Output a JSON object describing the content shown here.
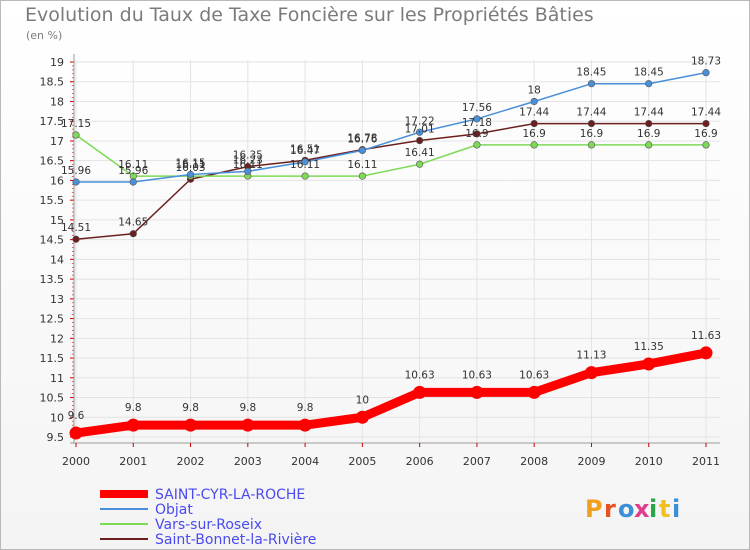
{
  "title": "Evolution du Taux de Taxe Foncière sur les Propriétés Bâties",
  "unit": "(en %)",
  "brand": "Proxiti",
  "chart_data": {
    "type": "line",
    "title": "Evolution du Taux de Taxe Foncière sur les Propriétés Bâties",
    "ylabel": "(en %)",
    "categories": [
      "2000",
      "2001",
      "2002",
      "2003",
      "2004",
      "2005",
      "2006",
      "2007",
      "2008",
      "2009",
      "2010",
      "2011"
    ],
    "ylim": [
      9.5,
      19
    ],
    "yticks": [
      "9.5",
      "10",
      "10.5",
      "11",
      "11.5",
      "12",
      "12.5",
      "13",
      "13.5",
      "14",
      "14.5",
      "15",
      "15.5",
      "16",
      "16.5",
      "17",
      "17.5",
      "18",
      "18.5",
      "19"
    ],
    "series": [
      {
        "name": "SAINT-CYR-LA-ROCHE",
        "color": "#ff0000",
        "values": [
          9.6,
          9.8,
          9.8,
          9.8,
          9.8,
          10,
          10.63,
          10.63,
          10.63,
          11.13,
          11.35,
          11.63
        ],
        "labels": [
          "9.6",
          "9.8",
          "9.8",
          "9.8",
          "9.8",
          "10",
          "10.63",
          "10.63",
          "10.63",
          "11.13",
          "11.35",
          "11.63"
        ]
      },
      {
        "name": "Objat",
        "color": "#4a90d9",
        "values": [
          15.96,
          15.96,
          16.15,
          16.23,
          16.47,
          16.76,
          17.22,
          17.56,
          18,
          18.45,
          18.45,
          18.73
        ],
        "labels": [
          "15.96",
          "15.96",
          "16.15",
          "16.23",
          "16.47",
          "16.76",
          "17.22",
          "17.56",
          "18",
          "18.45",
          "18.45",
          "18.73"
        ]
      },
      {
        "name": "Vars-sur-Roseix",
        "color": "#7ed957",
        "values": [
          17.15,
          16.11,
          16.11,
          16.11,
          16.11,
          16.11,
          16.41,
          16.9,
          16.9,
          16.9,
          16.9,
          16.9
        ],
        "labels": [
          "17.15",
          "16.11",
          "16.11",
          "16.11",
          "16.11",
          "16.11",
          "16.41",
          "16.9",
          "16.9",
          "16.9",
          "16.9",
          "16.9"
        ]
      },
      {
        "name": "Saint-Bonnet-la-Rivière",
        "color": "#6b1f1f",
        "values": [
          14.51,
          14.65,
          16.03,
          16.35,
          16.51,
          16.78,
          17.01,
          17.18,
          17.44,
          17.44,
          17.44,
          17.44
        ],
        "labels": [
          "14.51",
          "14.65",
          "16.03",
          "16.35",
          "16.51",
          "16.78",
          "17.01",
          "17.18",
          "17.44",
          "17.44",
          "17.44",
          "17.44"
        ]
      }
    ]
  }
}
